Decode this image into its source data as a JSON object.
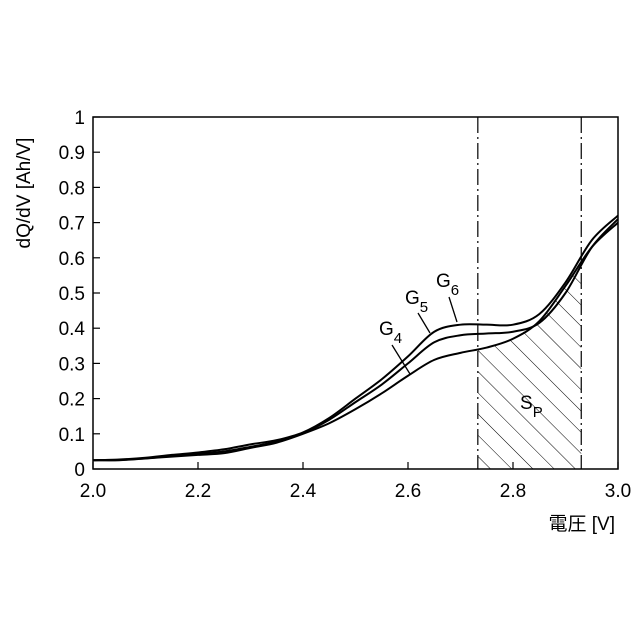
{
  "chart_data": {
    "type": "line",
    "xlabel": "電圧 [V]",
    "ylabel": "dQ/dV [Ah/V]",
    "xlim": [
      2.0,
      3.0
    ],
    "ylim": [
      0,
      1
    ],
    "xticks": [
      "2.0",
      "2.2",
      "2.4",
      "2.6",
      "2.8",
      "3.0"
    ],
    "yticks": [
      "0",
      "0.1",
      "0.2",
      "0.3",
      "0.4",
      "0.5",
      "0.6",
      "0.7",
      "0.8",
      "0.9",
      "1"
    ],
    "grid": false,
    "series": [
      {
        "name": "G4",
        "x": [
          2.0,
          2.05,
          2.1,
          2.15,
          2.2,
          2.25,
          2.3,
          2.35,
          2.4,
          2.45,
          2.5,
          2.55,
          2.6,
          2.65,
          2.7,
          2.75,
          2.8,
          2.85,
          2.9,
          2.95,
          3.0
        ],
        "y": [
          0.025,
          0.025,
          0.03,
          0.035,
          0.04,
          0.045,
          0.06,
          0.075,
          0.1,
          0.13,
          0.17,
          0.215,
          0.265,
          0.31,
          0.33,
          0.345,
          0.37,
          0.42,
          0.52,
          0.63,
          0.7
        ]
      },
      {
        "name": "G5",
        "x": [
          2.0,
          2.05,
          2.1,
          2.15,
          2.2,
          2.25,
          2.3,
          2.35,
          2.4,
          2.45,
          2.5,
          2.55,
          2.6,
          2.65,
          2.7,
          2.75,
          2.8,
          2.85,
          2.9,
          2.95,
          3.0
        ],
        "y": [
          0.025,
          0.026,
          0.03,
          0.037,
          0.043,
          0.05,
          0.063,
          0.078,
          0.102,
          0.14,
          0.19,
          0.24,
          0.3,
          0.36,
          0.38,
          0.385,
          0.39,
          0.415,
          0.5,
          0.63,
          0.71
        ]
      },
      {
        "name": "G6",
        "x": [
          2.0,
          2.05,
          2.1,
          2.15,
          2.2,
          2.25,
          2.3,
          2.35,
          2.4,
          2.45,
          2.5,
          2.55,
          2.6,
          2.65,
          2.7,
          2.75,
          2.8,
          2.85,
          2.9,
          2.95,
          3.0
        ],
        "y": [
          0.025,
          0.027,
          0.032,
          0.04,
          0.047,
          0.056,
          0.07,
          0.082,
          0.104,
          0.145,
          0.2,
          0.255,
          0.32,
          0.39,
          0.41,
          0.41,
          0.41,
          0.44,
          0.53,
          0.65,
          0.72
        ]
      }
    ],
    "series_labels": [
      {
        "text": "G",
        "sub": "4"
      },
      {
        "text": "G",
        "sub": "5"
      },
      {
        "text": "G",
        "sub": "6"
      }
    ],
    "region": {
      "label": "S",
      "sub": "P",
      "x_start": 2.733,
      "x_end": 2.93,
      "hatched": true,
      "boundary_style": "dash-dot"
    }
  }
}
